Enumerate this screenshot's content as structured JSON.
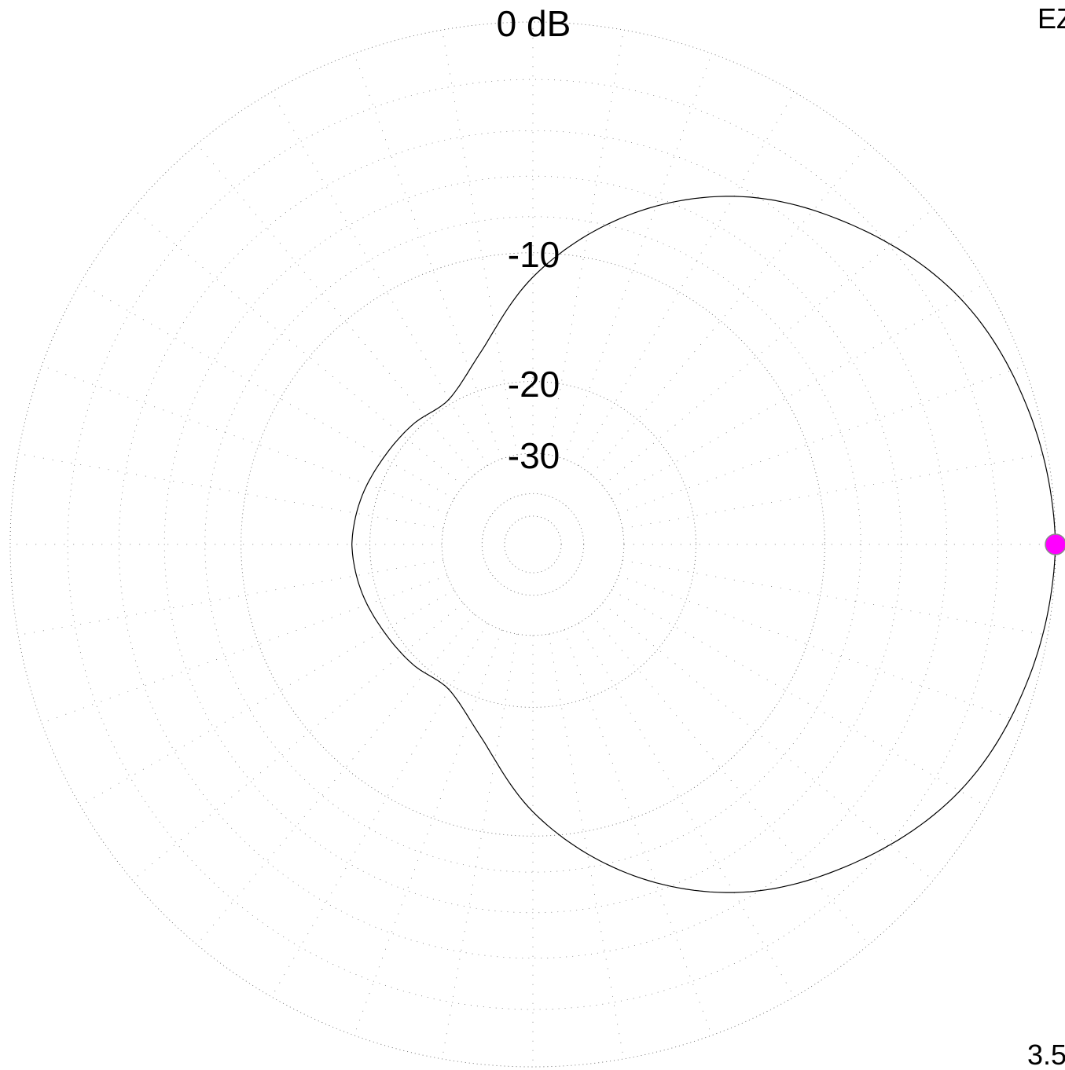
{
  "chart_data": {
    "type": "polar-pattern",
    "ring_labels": [
      "0 dB",
      "-10",
      "-20",
      "-30"
    ],
    "ring_levels_db": [
      0,
      -10,
      -20,
      -30,
      -40,
      -50
    ],
    "pattern": {
      "angles_deg": [
        0,
        15,
        30,
        45,
        60,
        75,
        90,
        105,
        120,
        135,
        150,
        165,
        180
      ],
      "gain_db": [
        0,
        -0.3,
        -1.0,
        -2.5,
        -4.5,
        -7.5,
        -11.5,
        -16.5,
        -19.5,
        -19.3,
        -19.0,
        -18.5,
        -18.2
      ]
    },
    "max_marker": {
      "angle_deg": 0,
      "gain_db": 0
    },
    "colors": {
      "pattern": "#000000",
      "grid": "#666666",
      "marker": "#ff00ff",
      "marker_outline": "#8a8a8a"
    },
    "corner_top_right": "EZ",
    "corner_bottom_right": "3.5"
  }
}
